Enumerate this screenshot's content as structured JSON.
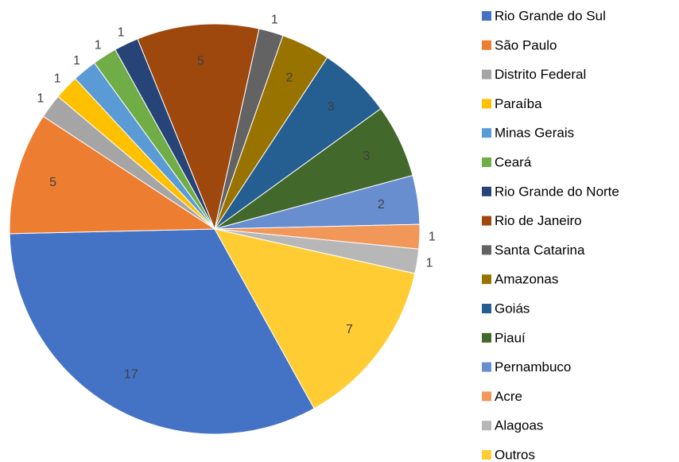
{
  "chart_data": {
    "type": "pie",
    "categories": [
      "Rio Grande do Sul",
      "São Paulo",
      "Distrito Federal",
      "Paraíba",
      "Minas Gerais",
      "Ceará",
      "Rio Grande do Norte",
      "Rio de Janeiro",
      "Santa Catarina",
      "Amazonas",
      "Goiás",
      "Piauí",
      "Pernambuco",
      "Acre",
      "Alagoas",
      "Outros"
    ],
    "values": [
      17,
      5,
      1,
      1,
      1,
      1,
      1,
      5,
      1,
      2,
      3,
      3,
      2,
      1,
      1,
      7
    ],
    "colors": [
      "#4472c4",
      "#ed7d31",
      "#a5a5a5",
      "#ffc000",
      "#5b9bd5",
      "#70ad47",
      "#264478",
      "#9e480e",
      "#636363",
      "#997300",
      "#255e91",
      "#43682b",
      "#698ed0",
      "#f1975a",
      "#b7b7b7",
      "#ffcd33"
    ],
    "start_angle": 151,
    "legend": "right"
  }
}
